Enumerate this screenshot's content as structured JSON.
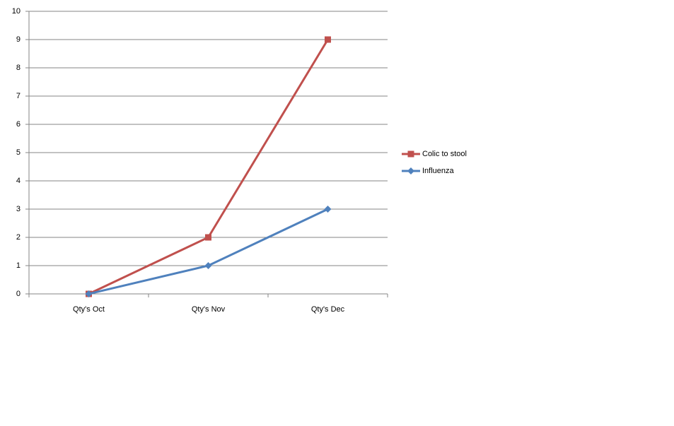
{
  "chart_data": {
    "type": "line",
    "categories": [
      "Qty's Oct",
      "Qty's Nov",
      "Qty's Dec"
    ],
    "series": [
      {
        "name": "Colic to stool",
        "color": "#c0504d",
        "marker": "square",
        "values": [
          0,
          2,
          9
        ]
      },
      {
        "name": "Influenza",
        "color": "#4f81bd",
        "marker": "diamond",
        "values": [
          0,
          1,
          3
        ]
      }
    ],
    "ylim": [
      0,
      10
    ],
    "yticks": [
      0,
      1,
      2,
      3,
      4,
      5,
      6,
      7,
      8,
      9,
      10
    ],
    "grid": true,
    "legend": "right"
  }
}
